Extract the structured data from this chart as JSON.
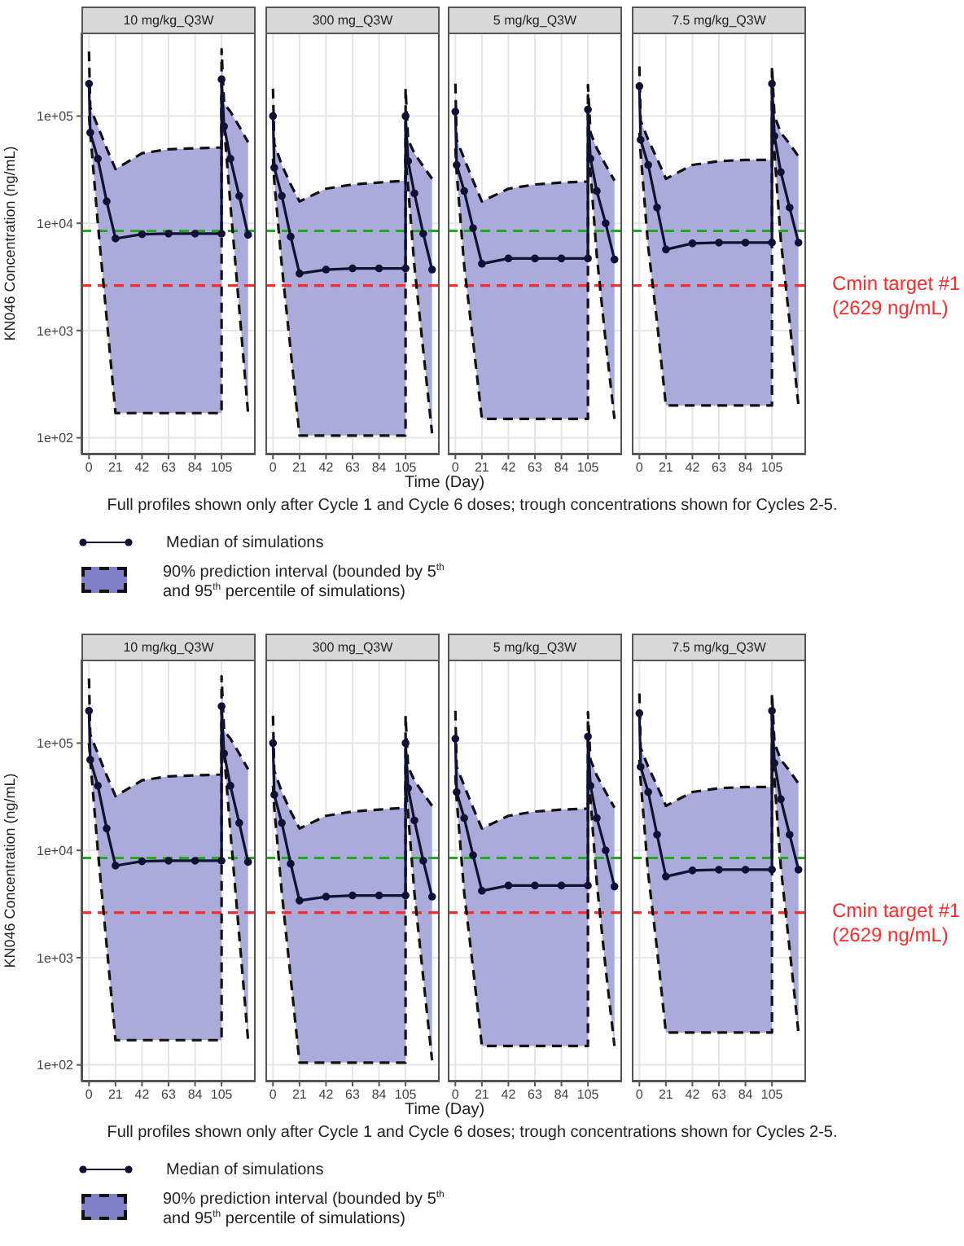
{
  "chart_data": [
    {
      "type": "line",
      "title": "10 mg/kg_Q3W",
      "ylabel": "KN046 Concentration (ng/mL)",
      "log": true,
      "grid": true,
      "marker": "circle",
      "xlim": [
        -6,
        132
      ],
      "ylim": [
        70,
        600000
      ],
      "xticks": [
        0,
        21,
        42,
        63,
        84,
        105
      ],
      "yticks": [
        {
          "value": 100,
          "label": "1e+02"
        },
        {
          "value": 1000,
          "label": "1e+03"
        },
        {
          "value": 10000,
          "label": "1e+04"
        },
        {
          "value": 100000,
          "label": "1e+05"
        }
      ],
      "x": [
        0,
        1,
        7,
        14,
        21,
        42,
        63,
        84,
        105,
        105,
        107,
        112,
        119,
        126
      ],
      "series": [
        {
          "type": "line",
          "color": "#111111",
          "line_style": "dashed",
          "marker": "none",
          "values": [
            400000,
            120000,
            80000,
            50000,
            32000,
            45000,
            49000,
            50000,
            51000,
            420000,
            130000,
            110000,
            80000,
            57000
          ]
        },
        {
          "type": "line",
          "color": "#111111",
          "line_style": "dashed",
          "marker": "none",
          "values": [
            100000,
            70000,
            10000,
            1300,
            170,
            170,
            170,
            170,
            170,
            150000,
            80000,
            15000,
            1600,
            170
          ]
        },
        {
          "type": "line",
          "color": "#111133",
          "values": [
            200000,
            70000,
            40000,
            16000,
            7200,
            7900,
            8000,
            8000,
            8000,
            220000,
            80000,
            40000,
            18000,
            7800
          ],
          "lower": [
            100000,
            70000,
            10000,
            1300,
            170,
            170,
            170,
            170,
            170,
            150000,
            80000,
            15000,
            1600,
            170
          ],
          "upper": [
            400000,
            120000,
            80000,
            50000,
            32000,
            45000,
            49000,
            50000,
            51000,
            420000,
            130000,
            110000,
            80000,
            57000
          ]
        }
      ],
      "ref_lines": [
        {
          "axis": "y",
          "value": 8500,
          "color": "#22aa22",
          "line_style": "dashed"
        },
        {
          "axis": "y",
          "value": 2629,
          "color": "#ff2a2a",
          "line_style": "dashed"
        }
      ]
    },
    {
      "type": "line",
      "title": "300 mg_Q3W",
      "xlabel": "Time (Day)",
      "log": true,
      "grid": true,
      "marker": "circle",
      "tick_labels": "x",
      "xlim": [
        -6,
        132
      ],
      "ylim": [
        70,
        600000
      ],
      "xticks": [
        0,
        21,
        42,
        63,
        84,
        105
      ],
      "yticks": [
        100,
        1000,
        10000,
        100000
      ],
      "x": [
        0,
        1,
        7,
        14,
        21,
        42,
        63,
        84,
        105,
        105,
        107,
        112,
        119,
        126
      ],
      "series": [
        {
          "type": "line",
          "color": "#111111",
          "line_style": "dashed",
          "marker": "none",
          "values": [
            180000,
            55000,
            35000,
            23000,
            16000,
            21000,
            23000,
            24000,
            25000,
            180000,
            60000,
            45000,
            34000,
            26000
          ]
        },
        {
          "type": "line",
          "color": "#111111",
          "line_style": "dashed",
          "marker": "none",
          "values": [
            40000,
            25000,
            4000,
            650,
            105,
            105,
            105,
            105,
            105,
            40000,
            22000,
            4000,
            650,
            110
          ]
        },
        {
          "type": "line",
          "color": "#111133",
          "values": [
            100000,
            33000,
            18000,
            7500,
            3400,
            3700,
            3800,
            3800,
            3800,
            100000,
            38000,
            19000,
            8000,
            3700
          ],
          "lower": [
            40000,
            25000,
            4000,
            650,
            105,
            105,
            105,
            105,
            105,
            40000,
            22000,
            4000,
            650,
            110
          ],
          "upper": [
            180000,
            55000,
            35000,
            23000,
            16000,
            21000,
            23000,
            24000,
            25000,
            180000,
            60000,
            45000,
            34000,
            26000
          ]
        }
      ],
      "ref_lines": [
        {
          "axis": "y",
          "value": 8500,
          "color": "#22aa22",
          "line_style": "dashed"
        },
        {
          "axis": "y",
          "value": 2629,
          "color": "#ff2a2a",
          "line_style": "dashed"
        }
      ]
    },
    {
      "type": "line",
      "title": "5 mg/kg_Q3W",
      "log": true,
      "grid": true,
      "marker": "circle",
      "tick_labels": "x",
      "xlim": [
        -6,
        132
      ],
      "ylim": [
        70,
        600000
      ],
      "xticks": [
        0,
        21,
        42,
        63,
        84,
        105
      ],
      "yticks": [
        100,
        1000,
        10000,
        100000
      ],
      "x": [
        0,
        1,
        7,
        14,
        21,
        42,
        63,
        84,
        105,
        105,
        107,
        112,
        119,
        126
      ],
      "series": [
        {
          "type": "line",
          "color": "#111111",
          "line_style": "dashed",
          "marker": "none",
          "values": [
            200000,
            60000,
            40000,
            25000,
            16000,
            21000,
            23000,
            24000,
            24500,
            195000,
            70000,
            50000,
            35000,
            25000
          ]
        },
        {
          "type": "line",
          "color": "#111111",
          "line_style": "dashed",
          "marker": "none",
          "values": [
            50000,
            30000,
            4000,
            800,
            150,
            150,
            150,
            150,
            150,
            50000,
            30000,
            5000,
            800,
            150
          ]
        },
        {
          "type": "line",
          "color": "#111133",
          "values": [
            110000,
            35000,
            20000,
            9000,
            4200,
            4700,
            4700,
            4700,
            4700,
            115000,
            40000,
            20000,
            10000,
            4600
          ],
          "lower": [
            50000,
            30000,
            4000,
            800,
            150,
            150,
            150,
            150,
            150,
            50000,
            30000,
            5000,
            800,
            150
          ],
          "upper": [
            200000,
            60000,
            40000,
            25000,
            16000,
            21000,
            23000,
            24000,
            24500,
            195000,
            70000,
            50000,
            35000,
            25000
          ]
        }
      ],
      "ref_lines": [
        {
          "axis": "y",
          "value": 8500,
          "color": "#22aa22",
          "line_style": "dashed"
        },
        {
          "axis": "y",
          "value": 2629,
          "color": "#ff2a2a",
          "line_style": "dashed"
        }
      ]
    },
    {
      "type": "line",
      "title": "7.5 mg/kg_Q3W",
      "log": true,
      "grid": true,
      "marker": "circle",
      "tick_labels": "x",
      "legend": "bottom",
      "xlim": [
        -6,
        132
      ],
      "ylim": [
        70,
        600000
      ],
      "xticks": [
        0,
        21,
        42,
        63,
        84,
        105
      ],
      "yticks": [
        100,
        1000,
        10000,
        100000
      ],
      "x": [
        0,
        1,
        7,
        14,
        21,
        42,
        63,
        84,
        105,
        105,
        107,
        112,
        119,
        126
      ],
      "annotations": [
        "Full profiles shown only after Cycle 1 and Cycle 6 doses; trough concentrations shown for Cycles 2-5.",
        "90% prediction interval (bounded by 5$^{th}$ and 95$^{th}$ percentile of simulations)"
      ],
      "series": [
        {
          "type": "line",
          "color": "#111111",
          "line_style": "dashed",
          "marker": "none",
          "values": [
            290000,
            90000,
            60000,
            40000,
            26000,
            35000,
            38000,
            39000,
            39000,
            290000,
            100000,
            70000,
            55000,
            42000
          ]
        },
        {
          "type": "line",
          "color": "#111111",
          "line_style": "dashed",
          "marker": "none",
          "values": [
            70000,
            45000,
            6000,
            1200,
            200,
            200,
            200,
            200,
            200,
            80000,
            45000,
            7000,
            1200,
            200
          ]
        },
        {
          "type": "line",
          "name": "Median of simulations",
          "color": "#111133",
          "values": [
            190000,
            60000,
            35000,
            14000,
            5700,
            6500,
            6600,
            6600,
            6600,
            200000,
            65000,
            30000,
            14000,
            6600
          ],
          "lower": [
            70000,
            45000,
            6000,
            1200,
            200,
            200,
            200,
            200,
            200,
            80000,
            45000,
            7000,
            1200,
            200
          ],
          "upper": [
            290000,
            90000,
            60000,
            40000,
            26000,
            35000,
            38000,
            39000,
            39000,
            290000,
            100000,
            70000,
            55000,
            42000
          ]
        }
      ],
      "ref_lines": [
        {
          "axis": "y",
          "value": 8500,
          "color": "#22aa22",
          "line_style": "dashed"
        },
        {
          "axis": "y",
          "value": 2629,
          "color": "#ff2a2a",
          "line_style": "dashed",
          "label": "Cmin target #1\n(2629 ng/mL)"
        }
      ]
    },
    {
      "type": "line",
      "title": "10 mg/kg_Q3W",
      "ylabel": "KN046 Concentration (ng/mL)",
      "log": true,
      "grid": true,
      "marker": "circle",
      "xlim": [
        -6,
        132
      ],
      "ylim": [
        70,
        600000
      ],
      "xticks": [
        0,
        21,
        42,
        63,
        84,
        105
      ],
      "yticks": [
        {
          "value": 100,
          "label": "1e+02"
        },
        {
          "value": 1000,
          "label": "1e+03"
        },
        {
          "value": 10000,
          "label": "1e+04"
        },
        {
          "value": 100000,
          "label": "1e+05"
        }
      ],
      "x": [
        0,
        1,
        7,
        14,
        21,
        42,
        63,
        84,
        105,
        105,
        107,
        112,
        119,
        126
      ],
      "series": [
        {
          "type": "line",
          "color": "#111111",
          "line_style": "dashed",
          "marker": "none",
          "values": [
            400000,
            120000,
            80000,
            50000,
            32000,
            45000,
            49000,
            50000,
            51000,
            420000,
            130000,
            110000,
            80000,
            57000
          ]
        },
        {
          "type": "line",
          "color": "#111111",
          "line_style": "dashed",
          "marker": "none",
          "values": [
            100000,
            70000,
            10000,
            1300,
            170,
            170,
            170,
            170,
            170,
            150000,
            80000,
            15000,
            1600,
            170
          ]
        },
        {
          "type": "line",
          "color": "#111133",
          "values": [
            200000,
            70000,
            40000,
            16000,
            7200,
            7900,
            8000,
            8000,
            8000,
            220000,
            80000,
            40000,
            18000,
            7800
          ],
          "lower": [
            100000,
            70000,
            10000,
            1300,
            170,
            170,
            170,
            170,
            170,
            150000,
            80000,
            15000,
            1600,
            170
          ],
          "upper": [
            400000,
            120000,
            80000,
            50000,
            32000,
            45000,
            49000,
            50000,
            51000,
            420000,
            130000,
            110000,
            80000,
            57000
          ]
        }
      ],
      "ref_lines": [
        {
          "axis": "y",
          "value": 8500,
          "color": "#22aa22",
          "line_style": "dashed"
        },
        {
          "axis": "y",
          "value": 2629,
          "color": "#ff2a2a",
          "line_style": "dashed"
        }
      ]
    },
    {
      "type": "line",
      "title": "300 mg_Q3W",
      "xlabel": "Time (Day)",
      "log": true,
      "grid": true,
      "marker": "circle",
      "tick_labels": "x",
      "xlim": [
        -6,
        132
      ],
      "ylim": [
        70,
        600000
      ],
      "xticks": [
        0,
        21,
        42,
        63,
        84,
        105
      ],
      "yticks": [
        100,
        1000,
        10000,
        100000
      ],
      "x": [
        0,
        1,
        7,
        14,
        21,
        42,
        63,
        84,
        105,
        105,
        107,
        112,
        119,
        126
      ],
      "series": [
        {
          "type": "line",
          "color": "#111111",
          "line_style": "dashed",
          "marker": "none",
          "values": [
            180000,
            55000,
            35000,
            23000,
            16000,
            21000,
            23000,
            24000,
            25000,
            180000,
            60000,
            45000,
            34000,
            26000
          ]
        },
        {
          "type": "line",
          "color": "#111111",
          "line_style": "dashed",
          "marker": "none",
          "values": [
            40000,
            25000,
            4000,
            650,
            105,
            105,
            105,
            105,
            105,
            40000,
            22000,
            4000,
            650,
            110
          ]
        },
        {
          "type": "line",
          "color": "#111133",
          "values": [
            100000,
            33000,
            18000,
            7500,
            3400,
            3700,
            3800,
            3800,
            3800,
            100000,
            38000,
            19000,
            8000,
            3700
          ],
          "lower": [
            40000,
            25000,
            4000,
            650,
            105,
            105,
            105,
            105,
            105,
            40000,
            22000,
            4000,
            650,
            110
          ],
          "upper": [
            180000,
            55000,
            35000,
            23000,
            16000,
            21000,
            23000,
            24000,
            25000,
            180000,
            60000,
            45000,
            34000,
            26000
          ]
        }
      ],
      "ref_lines": [
        {
          "axis": "y",
          "value": 8500,
          "color": "#22aa22",
          "line_style": "dashed"
        },
        {
          "axis": "y",
          "value": 2629,
          "color": "#ff2a2a",
          "line_style": "dashed"
        }
      ]
    },
    {
      "type": "line",
      "title": "5 mg/kg_Q3W",
      "log": true,
      "grid": true,
      "marker": "circle",
      "tick_labels": "x",
      "xlim": [
        -6,
        132
      ],
      "ylim": [
        70,
        600000
      ],
      "xticks": [
        0,
        21,
        42,
        63,
        84,
        105
      ],
      "yticks": [
        100,
        1000,
        10000,
        100000
      ],
      "x": [
        0,
        1,
        7,
        14,
        21,
        42,
        63,
        84,
        105,
        105,
        107,
        112,
        119,
        126
      ],
      "series": [
        {
          "type": "line",
          "color": "#111111",
          "line_style": "dashed",
          "marker": "none",
          "values": [
            200000,
            60000,
            40000,
            25000,
            16000,
            21000,
            23000,
            24000,
            24500,
            195000,
            70000,
            50000,
            35000,
            25000
          ]
        },
        {
          "type": "line",
          "color": "#111111",
          "line_style": "dashed",
          "marker": "none",
          "values": [
            50000,
            30000,
            4000,
            800,
            150,
            150,
            150,
            150,
            150,
            50000,
            30000,
            5000,
            800,
            150
          ]
        },
        {
          "type": "line",
          "color": "#111133",
          "values": [
            110000,
            35000,
            20000,
            9000,
            4200,
            4700,
            4700,
            4700,
            4700,
            115000,
            40000,
            20000,
            10000,
            4600
          ],
          "lower": [
            50000,
            30000,
            4000,
            800,
            150,
            150,
            150,
            150,
            150,
            50000,
            30000,
            5000,
            800,
            150
          ],
          "upper": [
            200000,
            60000,
            40000,
            25000,
            16000,
            21000,
            23000,
            24000,
            24500,
            195000,
            70000,
            50000,
            35000,
            25000
          ]
        }
      ],
      "ref_lines": [
        {
          "axis": "y",
          "value": 8500,
          "color": "#22aa22",
          "line_style": "dashed"
        },
        {
          "axis": "y",
          "value": 2629,
          "color": "#ff2a2a",
          "line_style": "dashed"
        }
      ]
    },
    {
      "type": "line",
      "title": "7.5 mg/kg_Q3W",
      "log": true,
      "grid": true,
      "marker": "circle",
      "tick_labels": "x",
      "legend": "bottom",
      "xlim": [
        -6,
        132
      ],
      "ylim": [
        70,
        600000
      ],
      "xticks": [
        0,
        21,
        42,
        63,
        84,
        105
      ],
      "yticks": [
        100,
        1000,
        10000,
        100000
      ],
      "x": [
        0,
        1,
        7,
        14,
        21,
        42,
        63,
        84,
        105,
        105,
        107,
        112,
        119,
        126
      ],
      "annotations": [
        "Full profiles shown only after Cycle 1 and Cycle 6 doses; trough concentrations shown for Cycles 2-5.",
        "90% prediction interval (bounded by 5$^{th}$ and 95$^{th}$ percentile of simulations)"
      ],
      "series": [
        {
          "type": "line",
          "color": "#111111",
          "line_style": "dashed",
          "marker": "none",
          "values": [
            290000,
            90000,
            60000,
            40000,
            26000,
            35000,
            38000,
            39000,
            39000,
            290000,
            100000,
            70000,
            55000,
            42000
          ]
        },
        {
          "type": "line",
          "color": "#111111",
          "line_style": "dashed",
          "marker": "none",
          "values": [
            70000,
            45000,
            6000,
            1200,
            200,
            200,
            200,
            200,
            200,
            80000,
            45000,
            7000,
            1200,
            200
          ]
        },
        {
          "type": "line",
          "name": "Median of simulations",
          "color": "#111133",
          "values": [
            190000,
            60000,
            35000,
            14000,
            5700,
            6500,
            6600,
            6600,
            6600,
            200000,
            65000,
            30000,
            14000,
            6600
          ],
          "lower": [
            70000,
            45000,
            6000,
            1200,
            200,
            200,
            200,
            200,
            200,
            80000,
            45000,
            7000,
            1200,
            200
          ],
          "upper": [
            290000,
            90000,
            60000,
            40000,
            26000,
            35000,
            38000,
            39000,
            39000,
            290000,
            100000,
            70000,
            55000,
            42000
          ]
        }
      ],
      "ref_lines": [
        {
          "axis": "y",
          "value": 8500,
          "color": "#22aa22",
          "line_style": "dashed"
        },
        {
          "axis": "y",
          "value": 2629,
          "color": "#ff2a2a",
          "line_style": "dashed",
          "label": "Cmin target #1\n(2629 ng/mL)"
        }
      ]
    }
  ]
}
